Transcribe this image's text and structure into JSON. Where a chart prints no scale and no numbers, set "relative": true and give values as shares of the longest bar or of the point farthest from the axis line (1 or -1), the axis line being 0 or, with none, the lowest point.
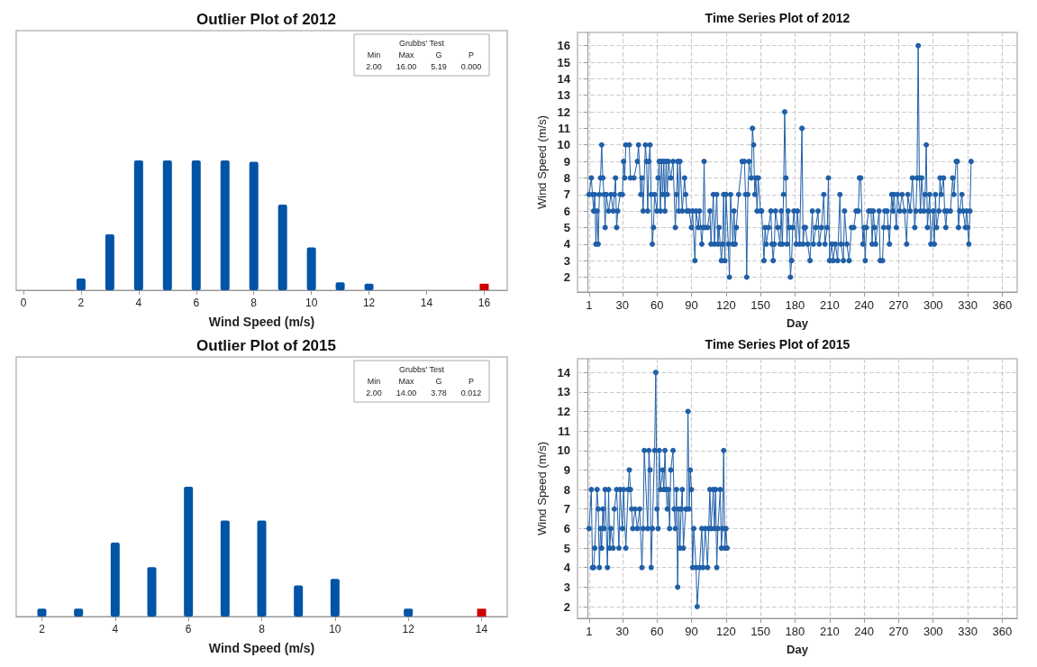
{
  "chart_data": [
    {
      "type": "bar",
      "title": "Outlier Plot of 2012",
      "xlabel": "Wind Speed (m/s)",
      "relative": true,
      "x": [
        2,
        3,
        4,
        5,
        6,
        7,
        8,
        9,
        10,
        11,
        12,
        16
      ],
      "values": [
        0.09,
        0.43,
        1,
        1,
        1,
        1,
        0.99,
        0.66,
        0.33,
        0.06,
        0.05,
        0.05
      ],
      "colors": [
        "#0054a6",
        "#0054a6",
        "#0054a6",
        "#0054a6",
        "#0054a6",
        "#0054a6",
        "#0054a6",
        "#0054a6",
        "#0054a6",
        "#0054a6",
        "#0054a6",
        "#cc0000"
      ],
      "xlim": [
        -0.25,
        16.8
      ],
      "xticks": [
        0,
        2,
        4,
        6,
        8,
        10,
        12,
        14,
        16
      ],
      "annotations": [
        "Grubbs' Test",
        "Min",
        "Max",
        "G",
        "P",
        "2.00",
        "16.00",
        "5.19",
        "0.000"
      ]
    },
    {
      "type": "line",
      "title": "Time Series Plot of 2012",
      "xlabel": "Day",
      "ylabel": "Wind Speed (m/s)",
      "marker": "circle",
      "grid": true,
      "xlim": [
        -9,
        373
      ],
      "xticks": [
        1,
        30,
        60,
        90,
        120,
        150,
        180,
        210,
        240,
        270,
        300,
        330,
        360
      ],
      "ylim": [
        1.1,
        16.8
      ],
      "yticks": [
        2,
        3,
        4,
        5,
        6,
        7,
        8,
        9,
        10,
        11,
        12,
        13,
        14,
        15,
        16
      ],
      "series": [
        {
          "color": "#1f5fa8",
          "x": [
            1,
            3,
            4,
            5,
            6,
            7,
            8,
            9,
            10,
            11,
            12,
            13,
            14,
            15,
            16,
            18,
            20,
            22,
            23,
            24,
            25,
            26,
            28,
            30,
            31,
            32,
            33,
            36,
            37,
            40,
            43,
            44,
            46,
            47,
            48,
            50,
            51,
            52,
            53,
            54,
            55,
            56,
            57,
            58,
            60,
            61,
            62,
            63,
            64,
            65,
            66,
            67,
            68,
            69,
            70,
            72,
            74,
            76,
            77,
            78,
            79,
            80,
            82,
            84,
            85,
            86,
            88,
            90,
            91,
            93,
            94,
            96,
            97,
            99,
            100,
            101,
            102,
            104,
            106,
            107,
            109,
            110,
            112,
            113,
            114,
            116,
            117,
            118,
            119,
            120,
            122,
            123,
            124,
            126,
            127,
            128,
            129,
            131,
            134,
            136,
            137,
            138,
            139,
            140,
            142,
            143,
            144,
            145,
            146,
            147,
            148,
            150,
            151,
            153,
            154,
            155,
            157,
            159,
            160,
            161,
            162,
            163,
            165,
            167,
            168,
            169,
            170,
            171,
            172,
            173,
            174,
            175,
            176,
            177,
            178,
            179,
            181,
            182,
            184,
            186,
            187,
            188,
            189,
            191,
            193,
            195,
            196,
            198,
            200,
            201,
            203,
            205,
            206,
            208,
            209,
            210,
            212,
            213,
            215,
            217,
            219,
            220,
            222,
            223,
            225,
            227,
            229,
            231,
            233,
            235,
            236,
            237,
            239,
            240,
            241,
            242,
            244,
            246,
            247,
            248,
            249,
            250,
            253,
            254,
            256,
            257,
            258,
            260,
            261,
            262,
            264,
            265,
            266,
            268,
            269,
            271,
            273,
            275,
            277,
            278,
            280,
            282,
            284,
            285,
            286,
            287,
            288,
            289,
            290,
            292,
            293,
            294,
            295,
            296,
            297,
            298,
            300,
            301,
            302,
            303,
            305,
            306,
            307,
            309,
            310,
            311,
            312,
            315,
            317,
            318,
            320,
            321,
            322,
            323,
            325,
            326,
            328,
            329,
            330,
            331,
            332,
            333
          ],
          "values": [
            7,
            8,
            7,
            6,
            7,
            4,
            6,
            4,
            7,
            8,
            10,
            8,
            7,
            5,
            7,
            6,
            7,
            6,
            7,
            8,
            5,
            6,
            7,
            7,
            9,
            8,
            10,
            10,
            8,
            8,
            9,
            10,
            7,
            8,
            6,
            10,
            9,
            6,
            9,
            10,
            7,
            4,
            5,
            7,
            6,
            8,
            9,
            6,
            9,
            7,
            9,
            6,
            9,
            7,
            9,
            8,
            9,
            5,
            7,
            9,
            6,
            9,
            6,
            8,
            7,
            6,
            6,
            5,
            6,
            3,
            6,
            5,
            6,
            4,
            5,
            9,
            5,
            5,
            6,
            4,
            7,
            4,
            7,
            4,
            5,
            3,
            4,
            7,
            3,
            7,
            4,
            2,
            7,
            4,
            6,
            4,
            5,
            7,
            9,
            9,
            7,
            2,
            7,
            9,
            8,
            11,
            10,
            7,
            8,
            6,
            8,
            6,
            6,
            3,
            5,
            4,
            5,
            6,
            4,
            3,
            4,
            6,
            5,
            4,
            6,
            4,
            7,
            12,
            8,
            4,
            6,
            5,
            2,
            3,
            5,
            6,
            4,
            6,
            4,
            11,
            4,
            5,
            5,
            4,
            3,
            6,
            4,
            5,
            6,
            4,
            5,
            7,
            4,
            5,
            8,
            3,
            4,
            3,
            4,
            3,
            7,
            4,
            3,
            6,
            4,
            3,
            5,
            5,
            6,
            6,
            8,
            8,
            4,
            5,
            3,
            5,
            6,
            6,
            4,
            6,
            5,
            4,
            6,
            3,
            3,
            5,
            6,
            6,
            5,
            4,
            7,
            6,
            7,
            5,
            7,
            6,
            7,
            6,
            4,
            7,
            6,
            8,
            5,
            6,
            8,
            16,
            8,
            6,
            8,
            6,
            7,
            10,
            5,
            6,
            7,
            4,
            6,
            4,
            7,
            5,
            6,
            8,
            7,
            8,
            6,
            5,
            6,
            6,
            8,
            7,
            9,
            9,
            5,
            6,
            7,
            6,
            5,
            6,
            5,
            4,
            6,
            9
          ]
        }
      ]
    },
    {
      "type": "bar",
      "title": "Outlier Plot of 2015",
      "xlabel": "Wind Speed (m/s)",
      "relative": true,
      "x": [
        2,
        3,
        4,
        5,
        6,
        7,
        8,
        9,
        10,
        12,
        14
      ],
      "values": [
        0.06,
        0.06,
        0.57,
        0.38,
        1,
        0.74,
        0.74,
        0.24,
        0.29,
        0.06,
        0.06
      ],
      "colors": [
        "#0054a6",
        "#0054a6",
        "#0054a6",
        "#0054a6",
        "#0054a6",
        "#0054a6",
        "#0054a6",
        "#0054a6",
        "#0054a6",
        "#0054a6",
        "#cc0000"
      ],
      "xlim": [
        1.3,
        14.7
      ],
      "xticks": [
        2,
        4,
        6,
        8,
        10,
        12,
        14
      ],
      "annotations": [
        "Grubbs' Test",
        "Min",
        "Max",
        "G",
        "P",
        "2.00",
        "14.00",
        "3.78",
        "0.012"
      ]
    },
    {
      "type": "line",
      "title": "Time Series Plot of 2015",
      "xlabel": "Day",
      "ylabel": "Wind Speed (m/s)",
      "marker": "circle",
      "grid": true,
      "xlim": [
        -9,
        373
      ],
      "xticks": [
        1,
        30,
        60,
        90,
        120,
        150,
        180,
        210,
        240,
        270,
        300,
        330,
        360
      ],
      "ylim": [
        1.4,
        14.7
      ],
      "yticks": [
        2,
        3,
        4,
        5,
        6,
        7,
        8,
        9,
        10,
        11,
        12,
        13,
        14
      ],
      "series": [
        {
          "color": "#1f5fa8",
          "x": [
            1,
            3,
            4,
            5,
            6,
            8,
            9,
            10,
            11,
            12,
            13,
            14,
            15,
            17,
            18,
            19,
            20,
            22,
            23,
            25,
            27,
            28,
            30,
            31,
            33,
            35,
            36,
            37,
            38,
            39,
            41,
            43,
            45,
            47,
            48,
            49,
            52,
            53,
            54,
            55,
            56,
            58,
            59,
            60,
            61,
            62,
            63,
            65,
            66,
            67,
            68,
            69,
            70,
            71,
            72,
            74,
            75,
            76,
            77,
            78,
            79,
            80,
            81,
            82,
            83,
            85,
            86,
            87,
            88,
            89,
            90,
            91,
            92,
            94,
            95,
            97,
            99,
            100,
            102,
            104,
            105,
            106,
            107,
            109,
            110,
            111,
            112,
            113,
            115,
            116,
            117,
            118,
            119,
            120,
            121
          ],
          "values": [
            6,
            8,
            4,
            4,
            5,
            8,
            7,
            4,
            6,
            5,
            7,
            6,
            8,
            4,
            8,
            5,
            6,
            5,
            7,
            8,
            5,
            8,
            6,
            8,
            5,
            8,
            9,
            8,
            7,
            6,
            7,
            6,
            7,
            4,
            6,
            10,
            6,
            10,
            9,
            4,
            6,
            10,
            14,
            7,
            6,
            10,
            8,
            9,
            8,
            10,
            8,
            7,
            8,
            6,
            9,
            10,
            7,
            6,
            8,
            3,
            7,
            5,
            7,
            8,
            5,
            7,
            7,
            12,
            7,
            9,
            8,
            4,
            6,
            4,
            2,
            4,
            6,
            4,
            6,
            4,
            6,
            8,
            6,
            8,
            6,
            8,
            4,
            6,
            8,
            5,
            6,
            10,
            5,
            6,
            5
          ]
        }
      ]
    }
  ]
}
